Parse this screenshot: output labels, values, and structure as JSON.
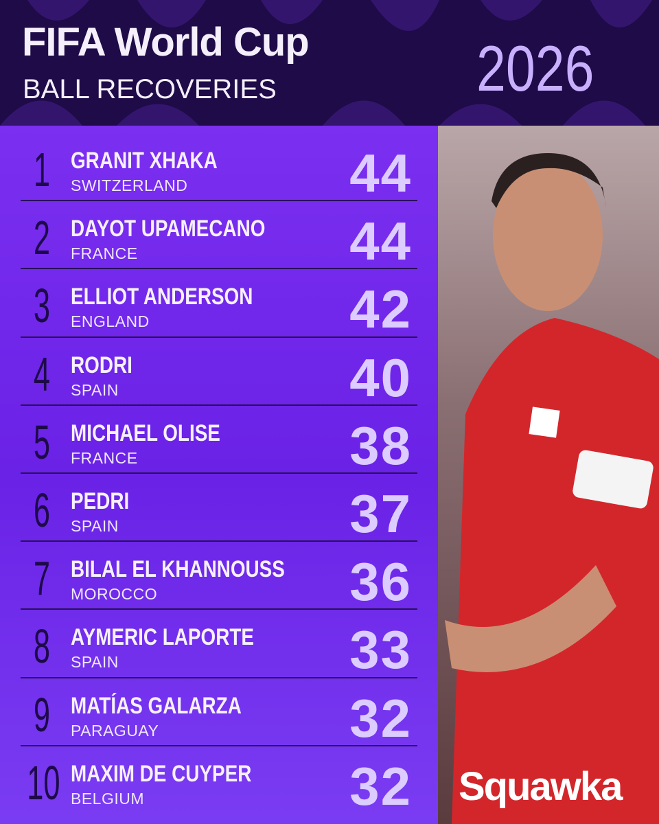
{
  "header": {
    "title": "FIFA World Cup",
    "subtitle": "BALL RECOVERIES",
    "year": "2026"
  },
  "rows": [
    {
      "rank": 1,
      "name": "GRANIT XHAKA",
      "country": "SWITZERLAND",
      "value": 44
    },
    {
      "rank": 2,
      "name": "DAYOT UPAMECANO",
      "country": "FRANCE",
      "value": 44
    },
    {
      "rank": 3,
      "name": "ELLIOT ANDERSON",
      "country": "ENGLAND",
      "value": 42
    },
    {
      "rank": 4,
      "name": "RODRI",
      "country": "SPAIN",
      "value": 40
    },
    {
      "rank": 5,
      "name": "MICHAEL OLISE",
      "country": "FRANCE",
      "value": 38
    },
    {
      "rank": 6,
      "name": "PEDRI",
      "country": "SPAIN",
      "value": 37
    },
    {
      "rank": 7,
      "name": "BILAL EL KHANNOUSS",
      "country": "MOROCCO",
      "value": 36
    },
    {
      "rank": 8,
      "name": "AYMERIC LAPORTE",
      "country": "SPAIN",
      "value": 33
    },
    {
      "rank": 9,
      "name": "MATÍAS GALARZA",
      "country": "PARAGUAY",
      "value": 32
    },
    {
      "rank": 10,
      "name": "MAXIM DE CUYPER",
      "country": "BELGIUM",
      "value": 32
    }
  ],
  "brand": "Squawka"
}
